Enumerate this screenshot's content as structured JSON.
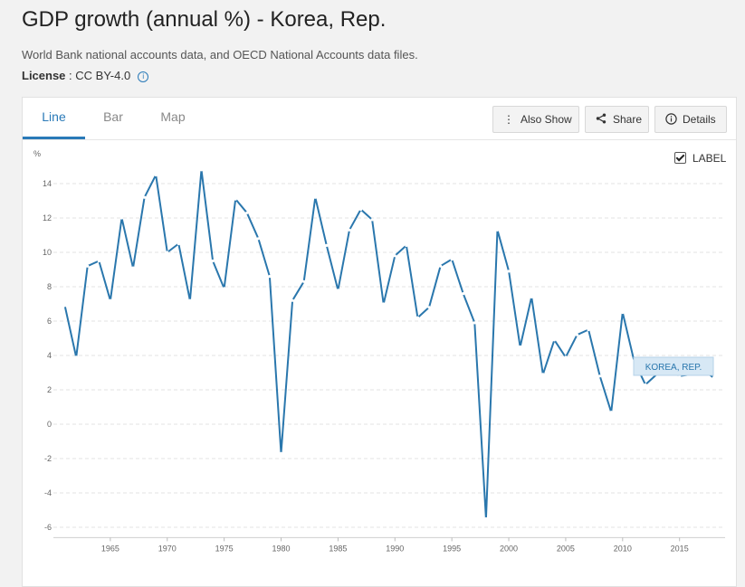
{
  "page": {
    "title": "GDP growth (annual %) - Korea, Rep.",
    "source": "World Bank national accounts data, and OECD National Accounts data files.",
    "license_label": "License",
    "license_value": " : CC BY-4.0"
  },
  "tabs": [
    {
      "label": "Line",
      "active": true
    },
    {
      "label": "Bar",
      "active": false
    },
    {
      "label": "Map",
      "active": false
    }
  ],
  "toolbar": {
    "also_show": "Also Show",
    "share": "Share",
    "details": "Details",
    "also_show_icon": "vertical-ellipsis-icon",
    "share_icon": "share-icon",
    "details_icon": "info-icon"
  },
  "label_toggle": {
    "text": "LABEL",
    "checked": true
  },
  "chart_data": {
    "type": "line",
    "ylabel": "%",
    "ylim": [
      -6,
      15
    ],
    "yticks": [
      -6,
      -4,
      -2,
      0,
      2,
      4,
      6,
      8,
      10,
      12,
      14
    ],
    "xticks": [
      1965,
      1970,
      1975,
      1980,
      1985,
      1990,
      1995,
      2000,
      2005,
      2010,
      2015
    ],
    "xlim": [
      1960,
      2019
    ],
    "grid": true,
    "color": "#2a77ad",
    "series": [
      {
        "name": "KOREA, REP.",
        "x": [
          1961,
          1962,
          1963,
          1964,
          1965,
          1966,
          1967,
          1968,
          1969,
          1970,
          1971,
          1972,
          1973,
          1974,
          1975,
          1976,
          1977,
          1978,
          1979,
          1980,
          1981,
          1982,
          1983,
          1984,
          1985,
          1986,
          1987,
          1988,
          1989,
          1990,
          1991,
          1992,
          1993,
          1994,
          1995,
          1996,
          1997,
          1998,
          1999,
          2000,
          2001,
          2002,
          2003,
          2004,
          2005,
          2006,
          2007,
          2008,
          2009,
          2010,
          2011,
          2012,
          2013,
          2014,
          2015,
          2016,
          2017,
          2018
        ],
        "values": [
          6.9,
          3.9,
          9.2,
          9.5,
          7.2,
          12.0,
          9.1,
          13.2,
          14.5,
          10.0,
          10.5,
          7.2,
          14.8,
          9.5,
          7.9,
          13.1,
          12.3,
          10.8,
          8.6,
          -1.7,
          7.2,
          8.3,
          13.2,
          10.4,
          7.8,
          11.3,
          12.5,
          11.9,
          7.0,
          9.8,
          10.4,
          6.2,
          6.8,
          9.2,
          9.6,
          7.6,
          5.9,
          -5.5,
          11.3,
          8.9,
          4.5,
          7.4,
          2.9,
          4.9,
          3.9,
          5.2,
          5.5,
          2.8,
          0.7,
          6.5,
          3.7,
          2.3,
          2.9,
          3.3,
          2.8,
          2.9,
          3.2,
          2.7
        ]
      }
    ]
  }
}
